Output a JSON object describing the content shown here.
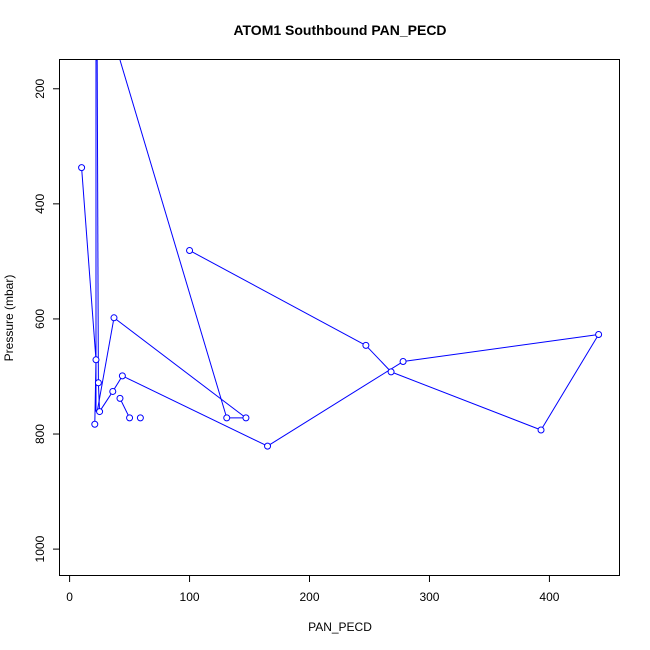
{
  "chart_data": {
    "type": "line",
    "title": "ATOM1 Southbound PAN_PECD",
    "xlabel": "PAN_PECD",
    "ylabel": "Pressure (mbar)",
    "xlim": [
      -8,
      458
    ],
    "ylim": [
      1045,
      150
    ],
    "y_reversed": true,
    "x_ticks": [
      0,
      100,
      200,
      300,
      400
    ],
    "y_ticks": [
      200,
      400,
      600,
      800,
      1000
    ],
    "grid": false,
    "legend": "none",
    "line_color": "#0000ff",
    "marker": "open-circle",
    "points_shown_as_markers": [
      {
        "x": 10,
        "y": 337
      },
      {
        "x": 22,
        "y": 671
      },
      {
        "x": 24,
        "y": 711
      },
      {
        "x": 25,
        "y": 761
      },
      {
        "x": 21,
        "y": 783
      },
      {
        "x": 36,
        "y": 726
      },
      {
        "x": 44,
        "y": 699
      },
      {
        "x": 42,
        "y": 738
      },
      {
        "x": 50,
        "y": 772
      },
      {
        "x": 59,
        "y": 772
      },
      {
        "x": 37,
        "y": 598
      },
      {
        "x": 131,
        "y": 772
      },
      {
        "x": 147,
        "y": 772
      },
      {
        "x": 165,
        "y": 821
      },
      {
        "x": 100,
        "y": 481
      },
      {
        "x": 247,
        "y": 646
      },
      {
        "x": 268,
        "y": 692
      },
      {
        "x": 278,
        "y": 674
      },
      {
        "x": 393,
        "y": 793
      },
      {
        "x": 441,
        "y": 627
      }
    ],
    "segments": [
      [
        {
          "x": 10,
          "y": 337
        },
        {
          "x": 22,
          "y": 671
        }
      ],
      [
        {
          "x": 22,
          "y": 671
        },
        {
          "x": 21,
          "y": 783
        }
      ],
      [
        {
          "x": 24,
          "y": 711
        },
        {
          "x": 25,
          "y": 761
        }
      ],
      [
        {
          "x": 25,
          "y": 761
        },
        {
          "x": 36,
          "y": 726
        }
      ],
      [
        {
          "x": 36,
          "y": 726
        },
        {
          "x": 44,
          "y": 699
        }
      ],
      [
        {
          "x": 42,
          "y": 738
        },
        {
          "x": 50,
          "y": 772
        }
      ],
      [
        {
          "x": 23,
          "y": 761
        },
        {
          "x": 37,
          "y": 598
        }
      ],
      [
        {
          "x": 37,
          "y": 598
        },
        {
          "x": 147,
          "y": 772
        }
      ],
      [
        {
          "x": 131,
          "y": 772
        },
        {
          "x": 147,
          "y": 772
        }
      ],
      [
        {
          "x": 22,
          "y": 761
        },
        {
          "x": 22,
          "y": 150
        }
      ],
      [
        {
          "x": 22,
          "y": 150
        },
        {
          "x": 23,
          "y": 150
        }
      ],
      [
        {
          "x": 23,
          "y": 150
        },
        {
          "x": 24,
          "y": 711
        }
      ],
      [
        {
          "x": 42,
          "y": 150
        },
        {
          "x": 131,
          "y": 772
        }
      ],
      [
        {
          "x": 44,
          "y": 699
        },
        {
          "x": 165,
          "y": 821
        }
      ],
      [
        {
          "x": 165,
          "y": 821
        },
        {
          "x": 278,
          "y": 674
        }
      ],
      [
        {
          "x": 278,
          "y": 674
        },
        {
          "x": 441,
          "y": 627
        }
      ],
      [
        {
          "x": 441,
          "y": 627
        },
        {
          "x": 393,
          "y": 793
        }
      ],
      [
        {
          "x": 393,
          "y": 793
        },
        {
          "x": 268,
          "y": 692
        }
      ],
      [
        {
          "x": 268,
          "y": 692
        },
        {
          "x": 247,
          "y": 646
        }
      ],
      [
        {
          "x": 247,
          "y": 646
        },
        {
          "x": 100,
          "y": 481
        }
      ]
    ]
  }
}
